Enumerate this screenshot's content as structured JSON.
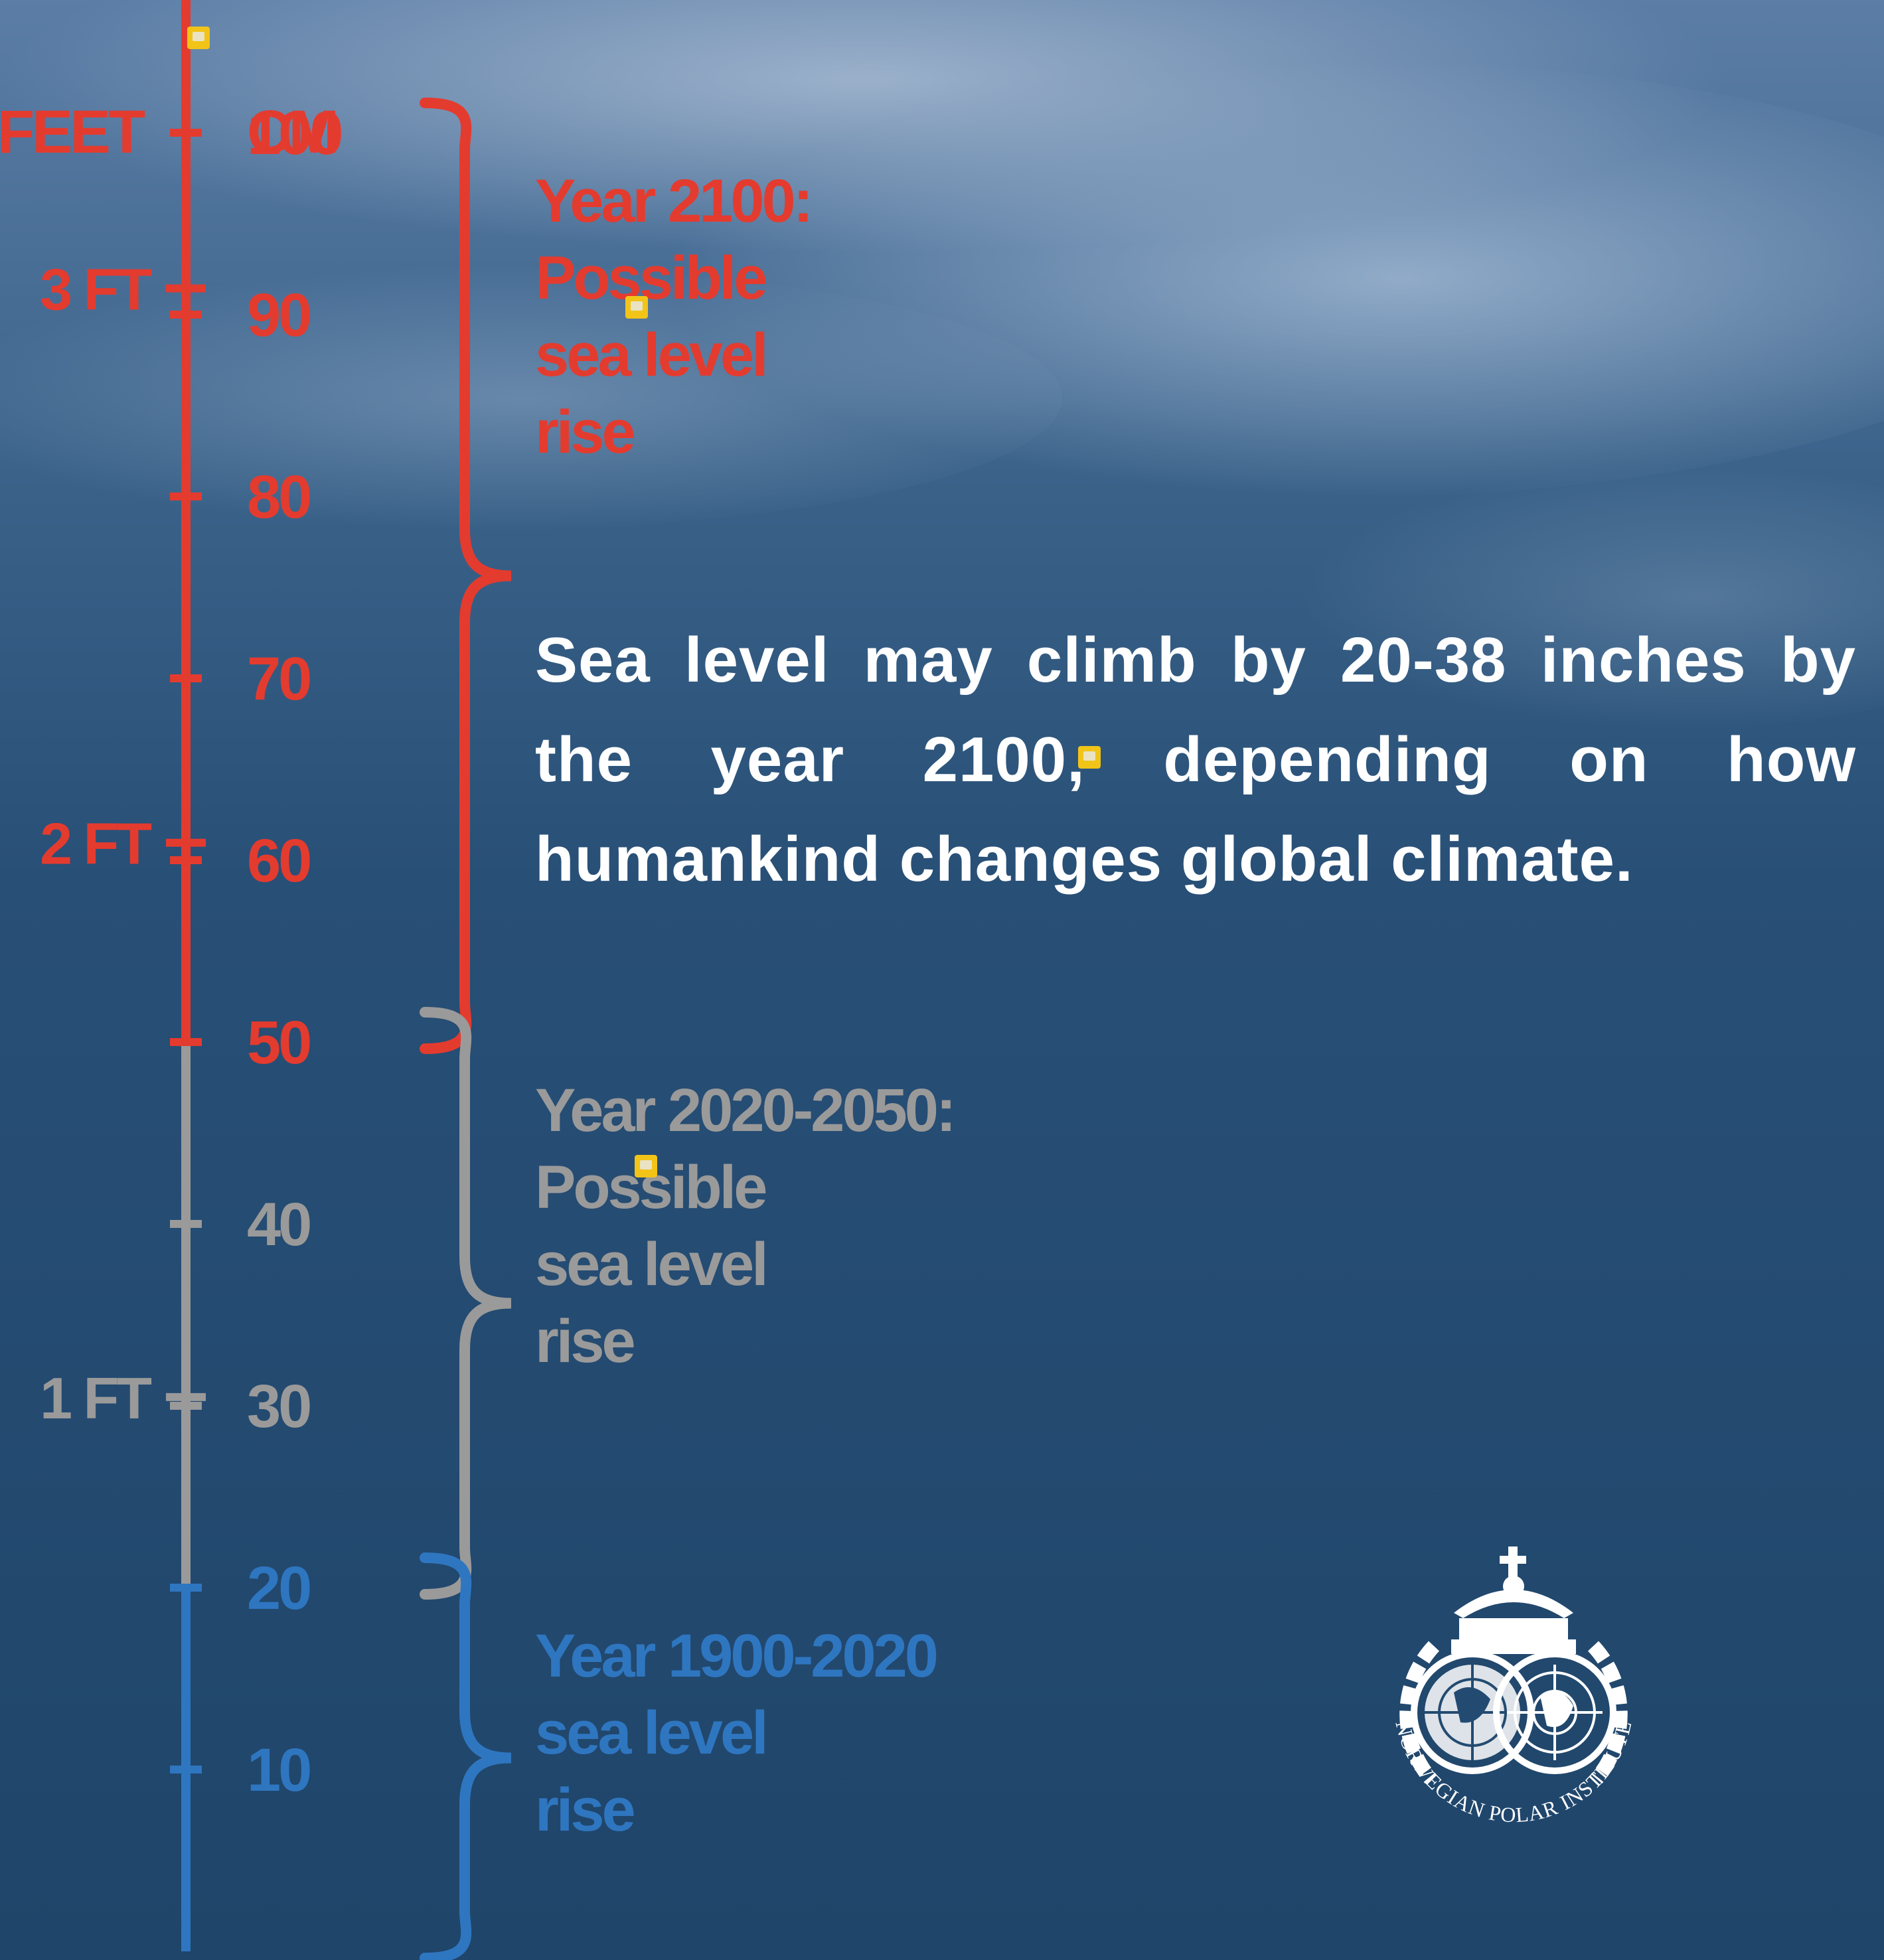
{
  "scale": {
    "feet_header": "FEET",
    "cm_header": "CM",
    "cm_ticks": [
      {
        "value": 100,
        "label": "100",
        "color": "#e43b2f"
      },
      {
        "value": 90,
        "label": "90",
        "color": "#e43b2f"
      },
      {
        "value": 80,
        "label": "80",
        "color": "#e43b2f"
      },
      {
        "value": 70,
        "label": "70",
        "color": "#e43b2f"
      },
      {
        "value": 60,
        "label": "60",
        "color": "#e43b2f"
      },
      {
        "value": 50,
        "label": "50",
        "color": "#e43b2f"
      },
      {
        "value": 40,
        "label": "40",
        "color": "#9a9a9a"
      },
      {
        "value": 30,
        "label": "30",
        "color": "#9a9a9a"
      },
      {
        "value": 20,
        "label": "20",
        "color": "#2f76c0"
      },
      {
        "value": 10,
        "label": "10",
        "color": "#2f76c0"
      }
    ],
    "feet_ticks": [
      {
        "value_cm": 91.44,
        "label": "3 FT",
        "color": "#e43b2f"
      },
      {
        "value_cm": 60.96,
        "label": "2 FT",
        "color": "#e43b2f"
      },
      {
        "value_cm": 30.48,
        "label": "1 FT",
        "color": "#9a9a9a"
      }
    ],
    "segments": [
      {
        "from_cm": 50,
        "to_cm": 118,
        "color": "#e43b2f"
      },
      {
        "from_cm": 20,
        "to_cm": 50,
        "color": "#9a9a9a"
      },
      {
        "from_cm": 0,
        "to_cm": 20,
        "color": "#2f76c0"
      }
    ]
  },
  "ranges": [
    {
      "from_cm": 50,
      "to_cm": 100,
      "color": "#e43b2f",
      "lines": [
        "Year 2100:",
        "Possible",
        "sea level",
        "rise"
      ]
    },
    {
      "from_cm": 20,
      "to_cm": 50,
      "color": "#9a9a9a",
      "lines": [
        "Year 2020-2050:",
        "Possible",
        "sea level",
        "rise"
      ]
    },
    {
      "from_cm": 0,
      "to_cm": 20,
      "color": "#2f76c0",
      "lines": [
        "Year 1900-2020",
        "sea level",
        "rise"
      ]
    }
  ],
  "headline": "Sea level may climb by 20-38 inches by the year 2100, depending on how humankind changes global climate.",
  "logo": {
    "text": "NORWEGIAN POLAR INSTITUTE",
    "color": "#ffffff"
  }
}
